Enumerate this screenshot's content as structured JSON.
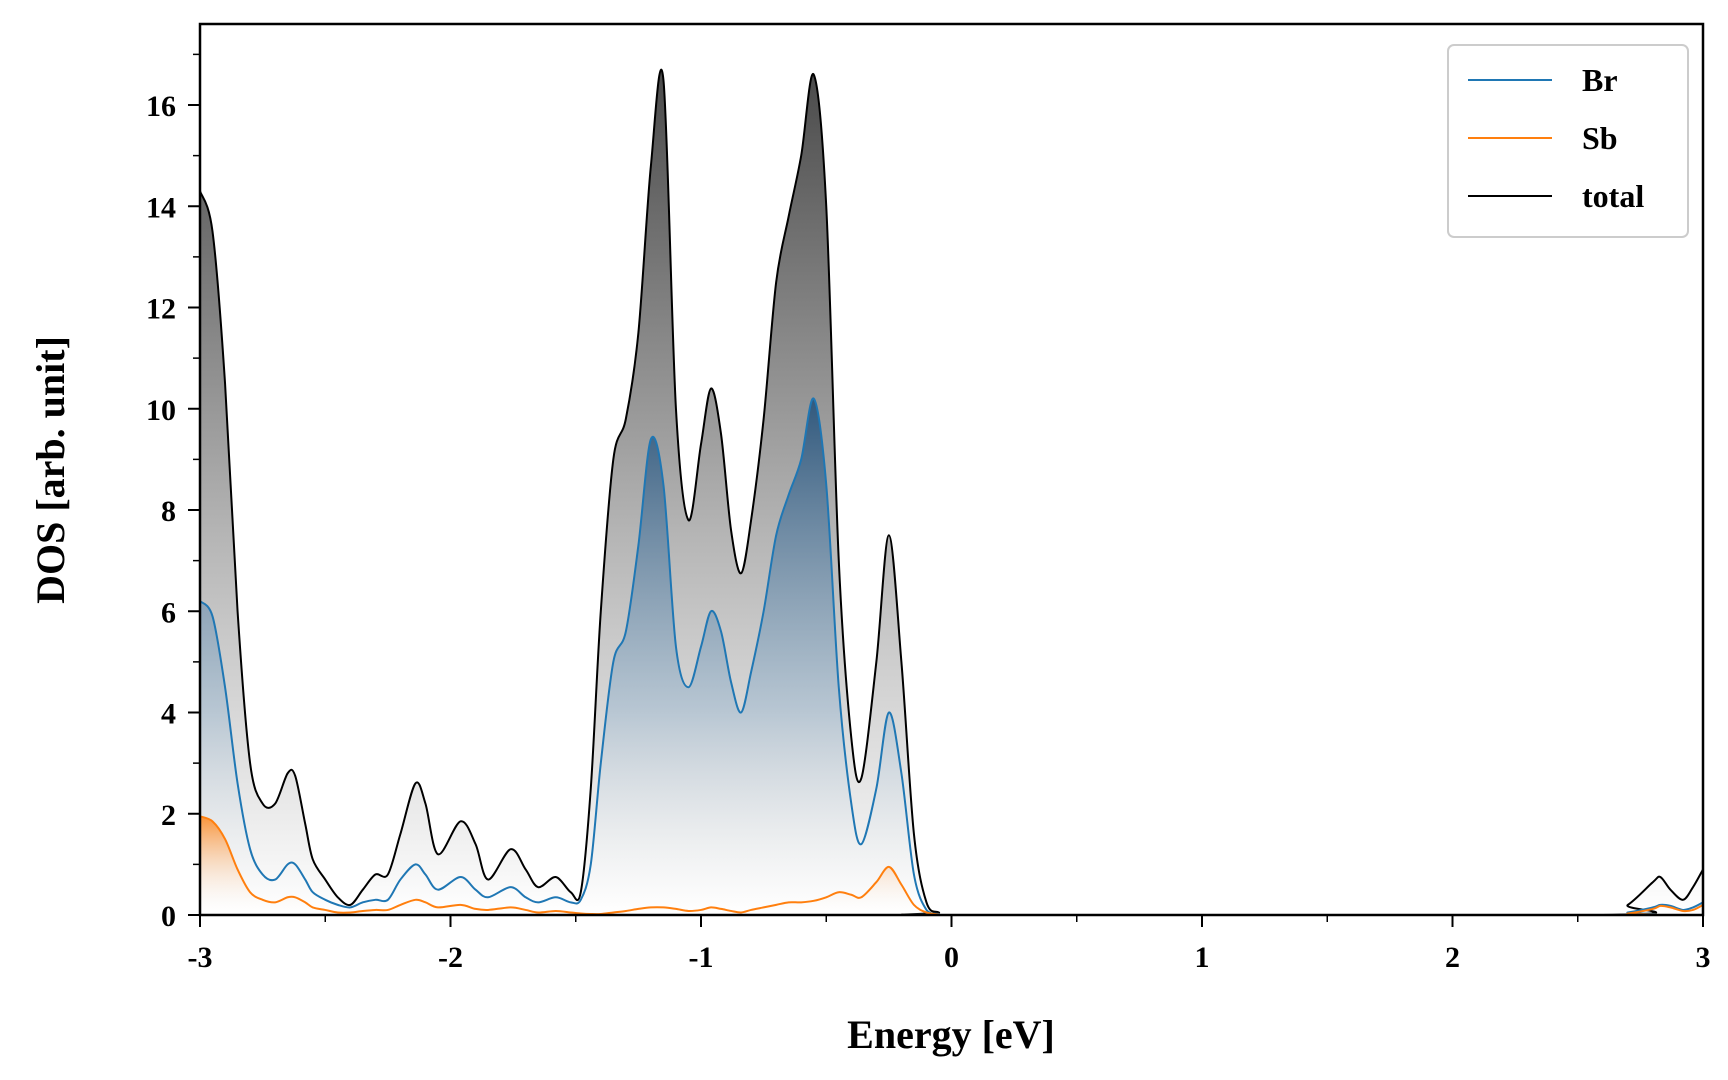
{
  "chart_data": {
    "type": "area",
    "title": "",
    "xlabel": "Energy [eV]",
    "ylabel": "DOS [arb. unit]",
    "xlim": [
      -3,
      3
    ],
    "ylim": [
      0,
      17.6
    ],
    "xticks": [
      -3,
      -2,
      -1,
      0,
      1,
      2,
      3
    ],
    "xtick_labels": [
      "-3",
      "-2",
      "-1",
      "0",
      "1",
      "2",
      "3"
    ],
    "yticks": [
      0,
      2,
      4,
      6,
      8,
      10,
      12,
      14,
      16
    ],
    "ytick_labels": [
      "0",
      "2",
      "4",
      "6",
      "8",
      "10",
      "12",
      "14",
      "16"
    ],
    "grid": false,
    "legend_position": "top-right",
    "colors": {
      "Br": "#1f77b4",
      "Sb": "#ff7f0e",
      "total": "#000000"
    },
    "series": [
      {
        "name": "Br",
        "x": [
          -3.0,
          -2.95,
          -2.9,
          -2.85,
          -2.8,
          -2.75,
          -2.7,
          -2.65,
          -2.62,
          -2.58,
          -2.55,
          -2.5,
          -2.45,
          -2.4,
          -2.35,
          -2.3,
          -2.25,
          -2.2,
          -2.14,
          -2.1,
          -2.05,
          -1.96,
          -1.9,
          -1.85,
          -1.76,
          -1.7,
          -1.65,
          -1.58,
          -1.52,
          -1.48,
          -1.44,
          -1.4,
          -1.35,
          -1.3,
          -1.25,
          -1.2,
          -1.15,
          -1.1,
          -1.05,
          -1.0,
          -0.96,
          -0.92,
          -0.88,
          -0.84,
          -0.8,
          -0.75,
          -0.7,
          -0.65,
          -0.6,
          -0.55,
          -0.5,
          -0.45,
          -0.4,
          -0.36,
          -0.3,
          -0.25,
          -0.2,
          -0.15,
          -0.1,
          -0.05,
          0.0,
          2.6,
          2.7,
          2.8,
          2.83,
          2.87,
          2.92,
          2.96,
          3.0
        ],
        "values": [
          6.2,
          5.9,
          4.5,
          2.6,
          1.3,
          0.8,
          0.7,
          1.0,
          1.0,
          0.7,
          0.45,
          0.3,
          0.2,
          0.15,
          0.25,
          0.3,
          0.3,
          0.7,
          1.0,
          0.8,
          0.5,
          0.75,
          0.5,
          0.35,
          0.55,
          0.35,
          0.25,
          0.35,
          0.25,
          0.3,
          1.0,
          3.0,
          5.0,
          5.6,
          7.3,
          9.4,
          8.5,
          5.3,
          4.5,
          5.3,
          6.0,
          5.6,
          4.6,
          4.0,
          4.8,
          6.0,
          7.5,
          8.3,
          9.0,
          10.2,
          8.5,
          4.5,
          2.2,
          1.4,
          2.5,
          4.0,
          2.8,
          0.8,
          0.1,
          0.02,
          0.0,
          0.0,
          0.05,
          0.15,
          0.2,
          0.18,
          0.1,
          0.15,
          0.25
        ]
      },
      {
        "name": "Sb",
        "x": [
          -3.0,
          -2.95,
          -2.9,
          -2.85,
          -2.8,
          -2.75,
          -2.7,
          -2.65,
          -2.62,
          -2.58,
          -2.55,
          -2.5,
          -2.45,
          -2.4,
          -2.35,
          -2.3,
          -2.25,
          -2.2,
          -2.14,
          -2.1,
          -2.05,
          -1.96,
          -1.9,
          -1.85,
          -1.76,
          -1.7,
          -1.65,
          -1.58,
          -1.52,
          -1.48,
          -1.44,
          -1.4,
          -1.35,
          -1.3,
          -1.25,
          -1.2,
          -1.15,
          -1.1,
          -1.05,
          -1.0,
          -0.96,
          -0.92,
          -0.88,
          -0.84,
          -0.8,
          -0.75,
          -0.7,
          -0.65,
          -0.6,
          -0.55,
          -0.5,
          -0.45,
          -0.4,
          -0.36,
          -0.3,
          -0.25,
          -0.2,
          -0.15,
          -0.1,
          -0.05,
          0.0,
          2.6,
          2.7,
          2.8,
          2.83,
          2.87,
          2.92,
          2.96,
          3.0
        ],
        "values": [
          1.95,
          1.85,
          1.5,
          0.9,
          0.45,
          0.3,
          0.25,
          0.35,
          0.35,
          0.25,
          0.15,
          0.1,
          0.05,
          0.05,
          0.08,
          0.1,
          0.1,
          0.2,
          0.3,
          0.25,
          0.15,
          0.2,
          0.12,
          0.1,
          0.15,
          0.1,
          0.05,
          0.08,
          0.05,
          0.03,
          0.02,
          0.02,
          0.05,
          0.08,
          0.12,
          0.15,
          0.15,
          0.12,
          0.08,
          0.1,
          0.15,
          0.12,
          0.08,
          0.05,
          0.1,
          0.15,
          0.2,
          0.25,
          0.25,
          0.28,
          0.35,
          0.45,
          0.4,
          0.35,
          0.65,
          0.95,
          0.6,
          0.2,
          0.05,
          0.01,
          0.0,
          0.0,
          0.03,
          0.12,
          0.18,
          0.15,
          0.08,
          0.1,
          0.2
        ]
      },
      {
        "name": "total",
        "x": [
          -3.0,
          -2.95,
          -2.9,
          -2.85,
          -2.8,
          -2.75,
          -2.7,
          -2.65,
          -2.62,
          -2.58,
          -2.55,
          -2.5,
          -2.45,
          -2.4,
          -2.35,
          -2.3,
          -2.25,
          -2.2,
          -2.14,
          -2.1,
          -2.05,
          -1.96,
          -1.9,
          -1.85,
          -1.76,
          -1.7,
          -1.65,
          -1.58,
          -1.52,
          -1.48,
          -1.44,
          -1.4,
          -1.35,
          -1.3,
          -1.25,
          -1.2,
          -1.15,
          -1.1,
          -1.05,
          -1.0,
          -0.96,
          -0.92,
          -0.88,
          -0.84,
          -0.8,
          -0.75,
          -0.7,
          -0.65,
          -0.6,
          -0.55,
          -0.5,
          -0.45,
          -0.4,
          -0.36,
          -0.3,
          -0.25,
          -0.2,
          -0.15,
          -0.1,
          -0.05,
          0.0,
          2.6,
          2.7,
          2.8,
          2.83,
          2.87,
          2.92,
          2.96,
          3.0
        ],
        "values": [
          14.3,
          13.5,
          10.5,
          6.0,
          3.0,
          2.2,
          2.2,
          2.8,
          2.75,
          1.8,
          1.1,
          0.7,
          0.35,
          0.2,
          0.5,
          0.8,
          0.8,
          1.6,
          2.6,
          2.2,
          1.2,
          1.85,
          1.4,
          0.7,
          1.3,
          0.9,
          0.55,
          0.75,
          0.45,
          0.45,
          2.5,
          6.0,
          9.0,
          9.8,
          11.5,
          14.8,
          16.5,
          10.0,
          7.8,
          9.3,
          10.4,
          9.5,
          7.6,
          6.75,
          7.8,
          9.8,
          12.5,
          13.8,
          15.0,
          16.6,
          14.0,
          7.0,
          3.5,
          2.7,
          5.0,
          7.5,
          5.0,
          1.6,
          0.25,
          0.05,
          0.0,
          0.0,
          0.2,
          0.65,
          0.75,
          0.5,
          0.3,
          0.55,
          0.9
        ]
      }
    ]
  }
}
